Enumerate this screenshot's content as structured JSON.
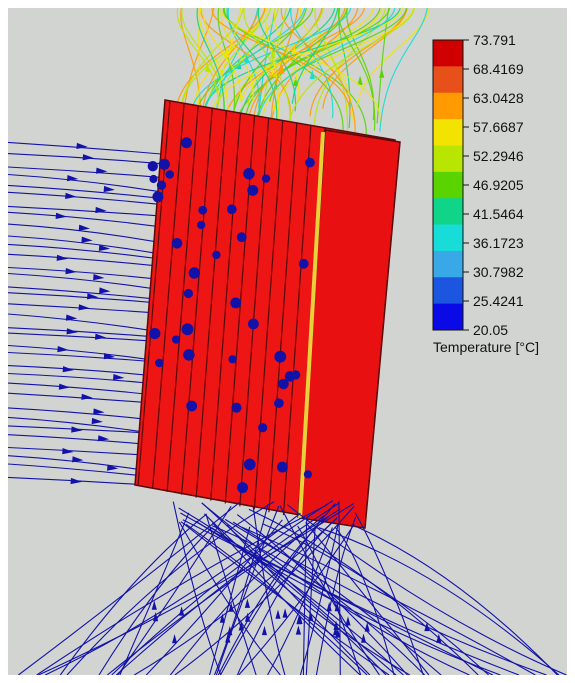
{
  "legend": {
    "title": "Temperature [°C]",
    "ticks": [
      "73.791",
      "68.4169",
      "63.0428",
      "57.6687",
      "52.2946",
      "46.9205",
      "41.5464",
      "36.1723",
      "30.7982",
      "25.4241",
      "20.05"
    ],
    "colors": [
      "#d00000",
      "#e8501a",
      "#ff9a00",
      "#f2e400",
      "#b9e600",
      "#59d400",
      "#10d488",
      "#17dcd8",
      "#39a8e6",
      "#1b55e0",
      "#0a0ae6"
    ]
  },
  "colors": {
    "background": "#d2d4d2",
    "heatsink": "#ee1515",
    "heatsink_edge": "#5a0a0a",
    "cold_streamline": "#1212a8",
    "hot_streamline": "#e8d23a"
  }
}
